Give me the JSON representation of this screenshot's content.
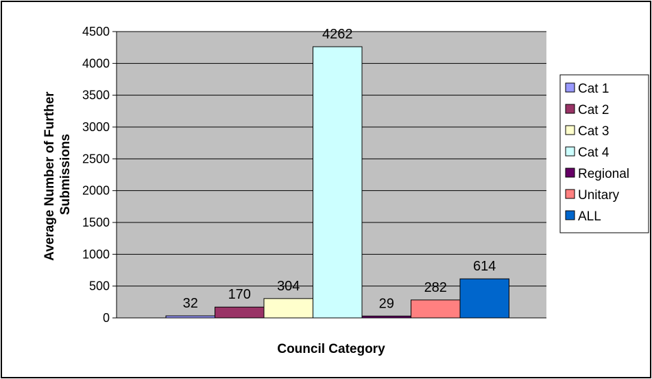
{
  "chart_data": {
    "type": "bar",
    "xlabel": "Council Category",
    "ylabel_lines": [
      "Average Number of Further",
      "Submissions"
    ],
    "ylim": [
      0,
      4500
    ],
    "yticks": [
      0,
      500,
      1000,
      1500,
      2000,
      2500,
      3000,
      3500,
      4000,
      4500
    ],
    "grid": true,
    "legend_position": "right",
    "plot_background": "#c0c0c0",
    "series": [
      {
        "name": "Cat 1",
        "value": 32,
        "color": "#9999ff"
      },
      {
        "name": "Cat 2",
        "value": 170,
        "color": "#993366"
      },
      {
        "name": "Cat 3",
        "value": 304,
        "color": "#ffffcc"
      },
      {
        "name": "Cat 4",
        "value": 4262,
        "color": "#ccffff"
      },
      {
        "name": "Regional",
        "value": 29,
        "color": "#660066"
      },
      {
        "name": "Unitary",
        "value": 282,
        "color": "#ff8080"
      },
      {
        "name": "ALL",
        "value": 614,
        "color": "#0066cc"
      }
    ]
  }
}
